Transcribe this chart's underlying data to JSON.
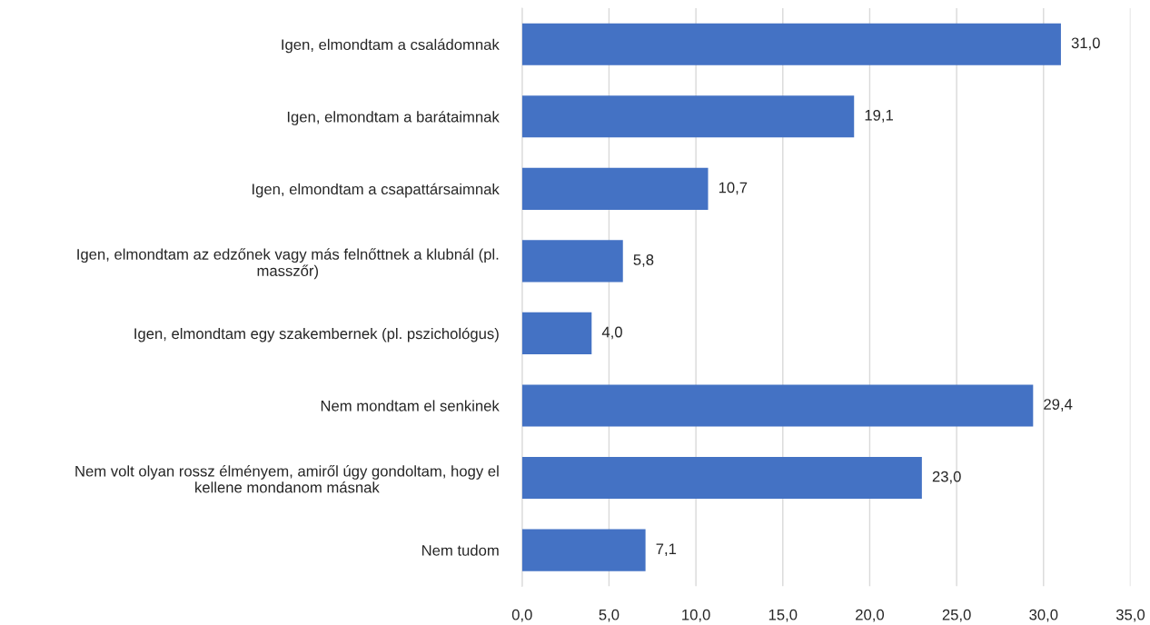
{
  "chart_data": {
    "type": "bar",
    "orientation": "horizontal",
    "categories": [
      "Igen, elmondtam a családomnak",
      "Igen, elmondtam a barátaimnak",
      "Igen, elmondtam a csapattársaimnak",
      "Igen, elmondtam az edzőnek vagy más felnőttnek a klubnál (pl.\nmasszőr)",
      "Igen, elmondtam egy szakembernek (pl. pszichológus)",
      "Nem mondtam el senkinek",
      "Nem volt olyan rossz élményem, amiről úgy gondoltam, hogy el\nkellene mondanom másnak",
      "Nem tudom"
    ],
    "values": [
      31.0,
      19.1,
      10.7,
      5.8,
      4.0,
      29.4,
      23.0,
      7.1
    ],
    "value_labels": [
      "31,0",
      "19,1",
      "10,7",
      "5,8",
      "4,0",
      "29,4",
      "23,0",
      "7,1"
    ],
    "color": "#4472c4",
    "xlim": [
      0,
      35
    ],
    "xticks": [
      {
        "value": 0,
        "label": "0,0"
      },
      {
        "value": 5,
        "label": "5,0"
      },
      {
        "value": 10,
        "label": "10,0"
      },
      {
        "value": 15,
        "label": "15,0"
      },
      {
        "value": 20,
        "label": "20,0"
      },
      {
        "value": 25,
        "label": "25,0"
      },
      {
        "value": 30,
        "label": "30,0"
      },
      {
        "value": 35,
        "label": "35,0"
      }
    ],
    "grid": "x"
  }
}
